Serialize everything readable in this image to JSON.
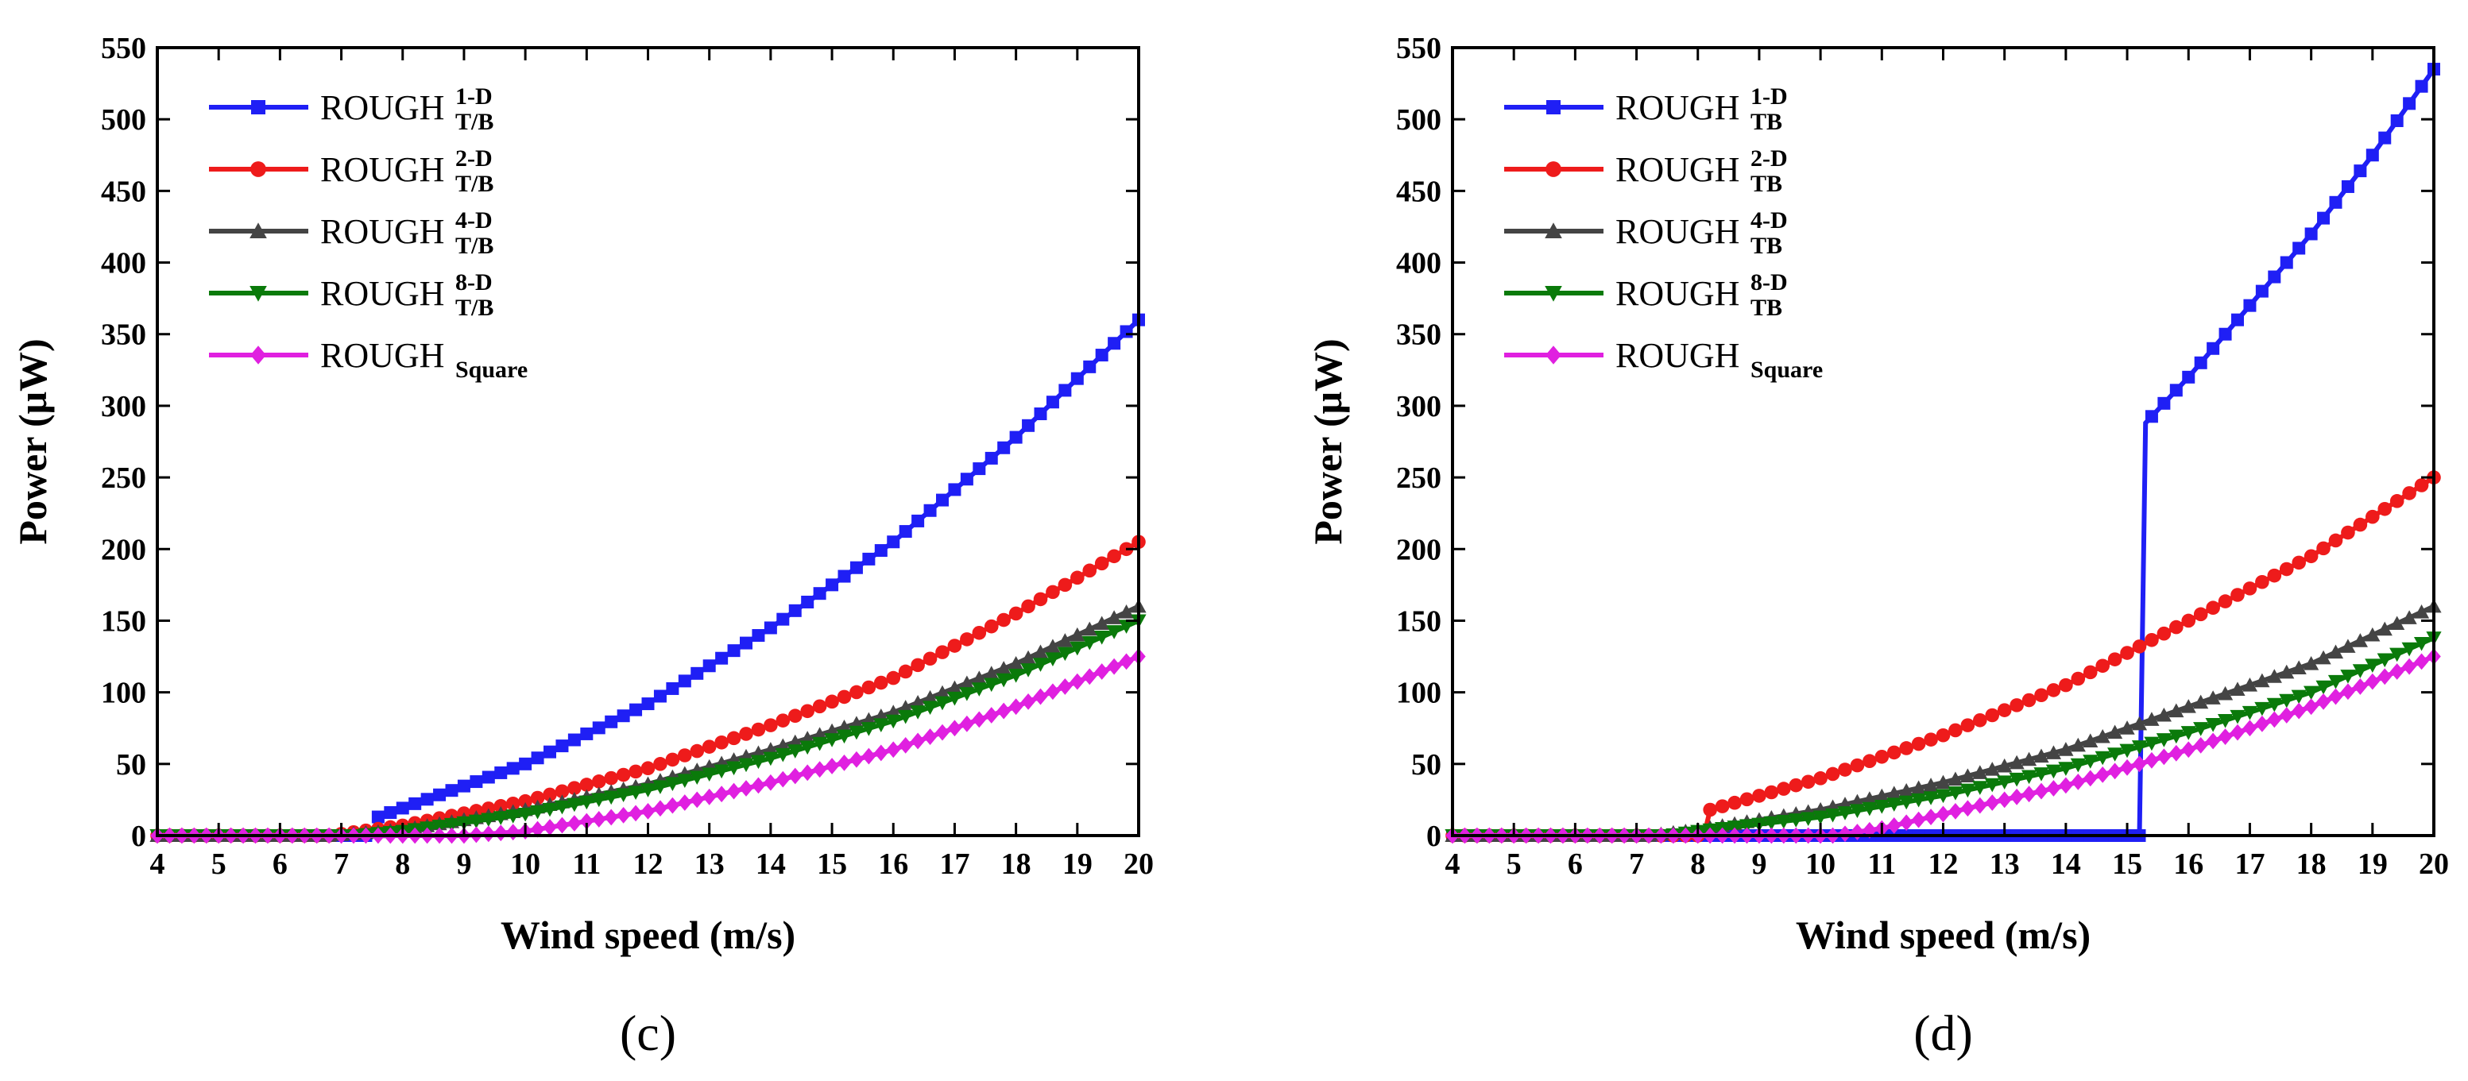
{
  "chart_data": [
    {
      "type": "line",
      "panel_label": "(c)",
      "xlabel": "Wind speed (m/s)",
      "ylabel": "Power (μW)",
      "xlim": [
        4,
        20
      ],
      "ylim": [
        0,
        550
      ],
      "xticks": [
        4,
        5,
        6,
        7,
        8,
        9,
        10,
        11,
        12,
        13,
        14,
        15,
        16,
        17,
        18,
        19,
        20
      ],
      "yticks": [
        0,
        50,
        100,
        150,
        200,
        250,
        300,
        350,
        400,
        450,
        500,
        550
      ],
      "grid": false,
      "legend_position": "top-left",
      "series": [
        {
          "name": "ROUGH T/B 1-D",
          "legend": {
            "base": "ROUGH",
            "sup": "1-D",
            "sub": "T/B"
          },
          "color": "#1f1ff5",
          "marker": "square",
          "x": [
            4,
            7.5,
            7.6,
            10,
            12,
            14,
            16,
            18,
            20
          ],
          "y": [
            0,
            0,
            13,
            50,
            92,
            145,
            205,
            278,
            360
          ]
        },
        {
          "name": "ROUGH T/B 2-D",
          "legend": {
            "base": "ROUGH",
            "sup": "2-D",
            "sub": "T/B"
          },
          "color": "#ee1b1b",
          "marker": "circle",
          "x": [
            4,
            6.8,
            8,
            10,
            12,
            14,
            16,
            18,
            20
          ],
          "y": [
            0,
            0,
            7,
            24,
            47,
            77,
            110,
            155,
            205
          ]
        },
        {
          "name": "ROUGH T/B 4-D",
          "legend": {
            "base": "ROUGH",
            "sup": "4-D",
            "sub": "T/B"
          },
          "color": "#444444",
          "marker": "triangle-up",
          "x": [
            4,
            6.8,
            8,
            10,
            12,
            14,
            16,
            18,
            20
          ],
          "y": [
            0,
            0,
            4,
            18,
            36,
            60,
            86,
            120,
            160
          ]
        },
        {
          "name": "ROUGH T/B 8-D",
          "legend": {
            "base": "ROUGH",
            "sup": "8-D",
            "sub": "T/B"
          },
          "color": "#0a7a0a",
          "marker": "triangle-down",
          "x": [
            4,
            7.2,
            8,
            10,
            12,
            14,
            16,
            18,
            20
          ],
          "y": [
            0,
            0,
            3,
            15,
            32,
            54,
            80,
            112,
            150
          ]
        },
        {
          "name": "ROUGH Square",
          "legend": {
            "base": "ROUGH",
            "sup": "",
            "sub": "Square"
          },
          "color": "#e020e0",
          "marker": "diamond",
          "x": [
            4,
            9,
            10,
            12,
            14,
            16,
            18,
            20
          ],
          "y": [
            0,
            0,
            3,
            17,
            37,
            60,
            90,
            125
          ]
        }
      ]
    },
    {
      "type": "line",
      "panel_label": "(d)",
      "xlabel": "Wind speed (m/s)",
      "ylabel": "Power (μW)",
      "xlim": [
        4,
        20
      ],
      "ylim": [
        0,
        550
      ],
      "xticks": [
        4,
        5,
        6,
        7,
        8,
        9,
        10,
        11,
        12,
        13,
        14,
        15,
        16,
        17,
        18,
        19,
        20
      ],
      "yticks": [
        0,
        50,
        100,
        150,
        200,
        250,
        300,
        350,
        400,
        450,
        500,
        550
      ],
      "grid": false,
      "legend_position": "top-left",
      "series": [
        {
          "name": "ROUGH TB 1-D",
          "legend": {
            "base": "ROUGH",
            "sup": "1-D",
            "sub": "TB"
          },
          "color": "#1f1ff5",
          "marker": "square",
          "x": [
            4,
            15.2,
            15.3,
            16,
            17,
            18,
            19,
            20
          ],
          "y": [
            0,
            0,
            288,
            320,
            370,
            420,
            475,
            535
          ]
        },
        {
          "name": "ROUGH TB 2-D",
          "legend": {
            "base": "ROUGH",
            "sup": "2-D",
            "sub": "TB"
          },
          "color": "#ee1b1b",
          "marker": "circle",
          "x": [
            4,
            8.1,
            8.2,
            10,
            12,
            14,
            16,
            18,
            20
          ],
          "y": [
            0,
            0,
            18,
            40,
            70,
            105,
            150,
            195,
            250
          ]
        },
        {
          "name": "ROUGH TB 4-D",
          "legend": {
            "base": "ROUGH",
            "sup": "4-D",
            "sub": "TB"
          },
          "color": "#444444",
          "marker": "triangle-up",
          "x": [
            4,
            7.2,
            8,
            10,
            12,
            14,
            16,
            18,
            20
          ],
          "y": [
            0,
            0,
            4,
            18,
            37,
            60,
            90,
            120,
            160
          ]
        },
        {
          "name": "ROUGH TB 8-D",
          "legend": {
            "base": "ROUGH",
            "sup": "8-D",
            "sub": "TB"
          },
          "color": "#0a7a0a",
          "marker": "triangle-down",
          "x": [
            4,
            7.5,
            8,
            10,
            12,
            14,
            16,
            18,
            20
          ],
          "y": [
            0,
            0,
            3,
            13,
            28,
            47,
            72,
            100,
            138
          ]
        },
        {
          "name": "ROUGH Square",
          "legend": {
            "base": "ROUGH",
            "sup": "",
            "sub": "Square"
          },
          "color": "#e020e0",
          "marker": "diamond",
          "x": [
            4,
            10.2,
            11,
            12,
            14,
            16,
            18,
            20
          ],
          "y": [
            0,
            0,
            5,
            15,
            35,
            60,
            90,
            125
          ]
        }
      ]
    }
  ]
}
